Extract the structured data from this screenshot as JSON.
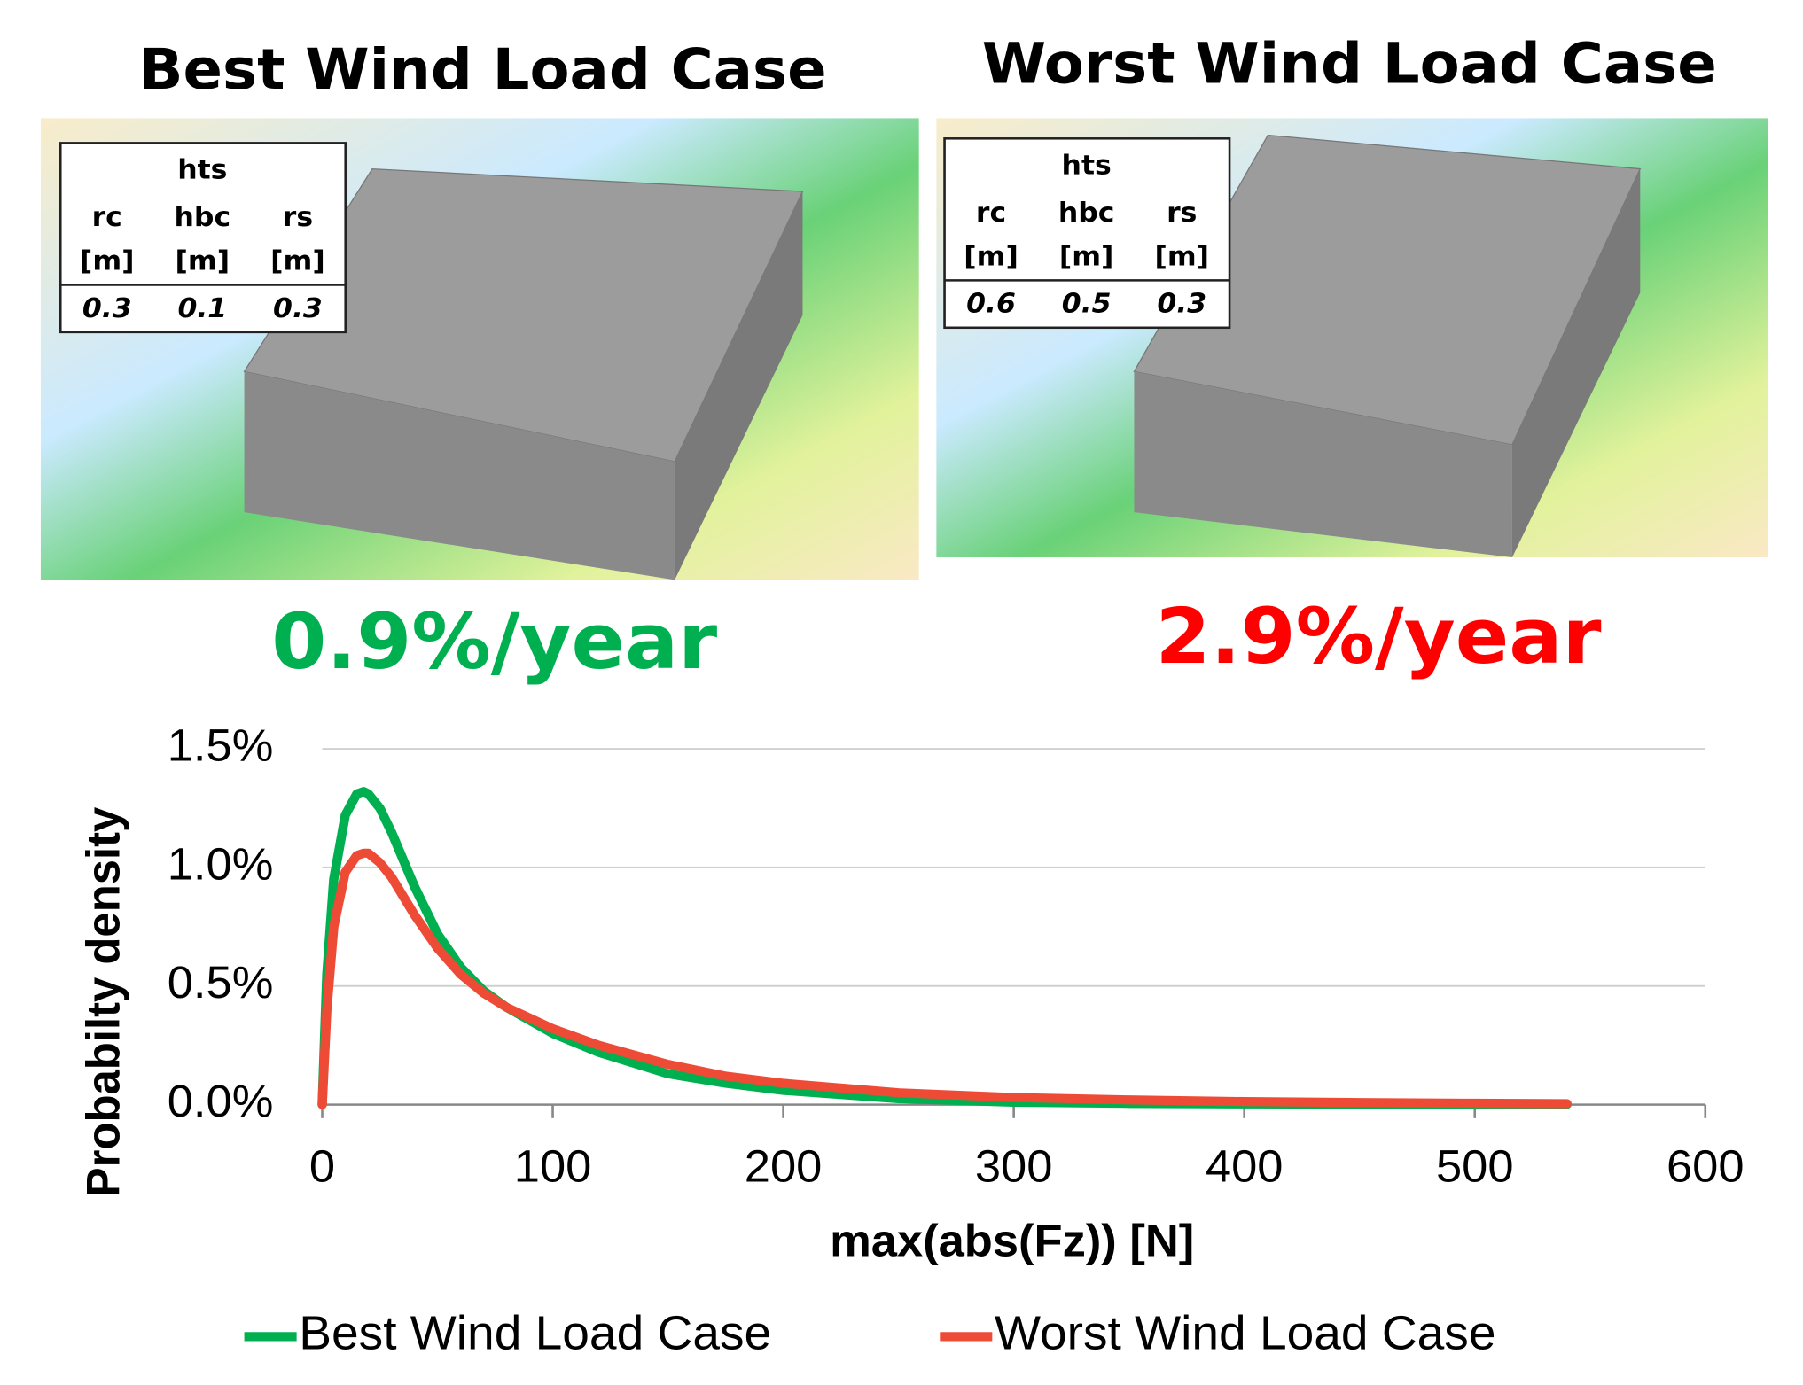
{
  "panels": [
    {
      "title": "Best Wind Load Case",
      "table": {
        "group": "hts",
        "columns": [
          "rc",
          "hbc",
          "rs"
        ],
        "units": [
          "[m]",
          "[m]",
          "[m]"
        ],
        "values": [
          0.3,
          0.1,
          0.3
        ]
      },
      "rate": "0.9%/year",
      "rate_color": "#00b050"
    },
    {
      "title": "Worst Wind Load Case",
      "table": {
        "group": "hts",
        "columns": [
          "rc",
          "hbc",
          "rs"
        ],
        "units": [
          "[m]",
          "[m]",
          "[m]"
        ],
        "values": [
          0.6,
          0.5,
          0.3
        ]
      },
      "rate": "2.9%/year",
      "rate_color": "#ff0000"
    }
  ],
  "chart_data": {
    "type": "line",
    "x_label": "max(abs(Fz)) [N]",
    "y_label": "Probabilty  density",
    "x": [
      0,
      2,
      5,
      10,
      15,
      18,
      20,
      25,
      30,
      40,
      50,
      60,
      70,
      80,
      100,
      120,
      150,
      175,
      200,
      250,
      300,
      350,
      400,
      450,
      500,
      540
    ],
    "series": [
      {
        "name": "Best Wind Load Case",
        "color": "#00b050",
        "values": [
          0,
          0.55,
          0.95,
          1.22,
          1.31,
          1.32,
          1.31,
          1.25,
          1.15,
          0.92,
          0.72,
          0.58,
          0.48,
          0.41,
          0.3,
          0.22,
          0.13,
          0.09,
          0.06,
          0.025,
          0.01,
          0.005,
          0.003,
          0.002,
          0.001,
          0.001
        ]
      },
      {
        "name": "Worst Wind Load Case",
        "color": "#ee4b37",
        "values": [
          0,
          0.4,
          0.75,
          0.98,
          1.05,
          1.06,
          1.06,
          1.02,
          0.96,
          0.8,
          0.66,
          0.55,
          0.47,
          0.41,
          0.32,
          0.25,
          0.17,
          0.12,
          0.09,
          0.05,
          0.03,
          0.02,
          0.013,
          0.009,
          0.006,
          0.004
        ]
      }
    ],
    "xlim": [
      0,
      600
    ],
    "xticks": [
      0,
      100,
      200,
      300,
      400,
      500,
      600
    ],
    "ylim": [
      0,
      1.5
    ],
    "yticks": [
      {
        "value": 0,
        "label": "0.0%"
      },
      {
        "value": 0.5,
        "label": "0.5%"
      },
      {
        "value": 1.0,
        "label": "1.0%"
      },
      {
        "value": 1.5,
        "label": "1.5%"
      }
    ],
    "grid": true,
    "legend": "bottom"
  }
}
